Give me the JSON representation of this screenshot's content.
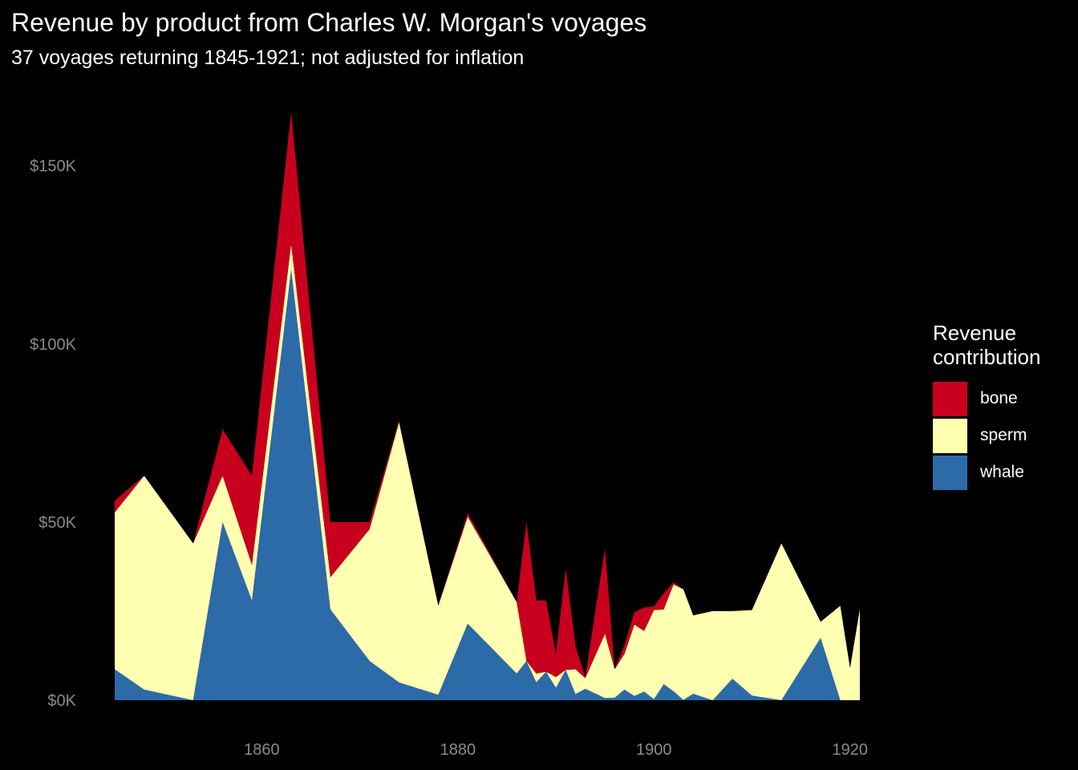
{
  "chart_data": {
    "type": "area",
    "stacked": true,
    "title": "Revenue by product from Charles W. Morgan's voyages",
    "subtitle": "37 voyages returning 1845-1921; not adjusted for inflation",
    "xlabel": "",
    "ylabel": "",
    "xlim": [
      1845,
      1921
    ],
    "ylim": [
      0,
      165000
    ],
    "x_ticks": [
      1860,
      1880,
      1900,
      1920
    ],
    "y_ticks": [
      0,
      50000,
      100000,
      150000
    ],
    "y_tick_labels": [
      "$0K",
      "$50K",
      "$100K",
      "$150K"
    ],
    "grid": false,
    "legend_position": "right",
    "legend_title": "Revenue contribution",
    "x": [
      1845,
      1848,
      1853,
      1856,
      1859,
      1863,
      1867,
      1871,
      1874,
      1878,
      1881,
      1886,
      1887,
      1888,
      1889,
      1890,
      1891,
      1892,
      1893,
      1895,
      1896,
      1897,
      1898,
      1899,
      1900,
      1901,
      1902,
      1903,
      1904,
      1906,
      1908,
      1910,
      1913,
      1917,
      1919,
      1920,
      1921
    ],
    "series": [
      {
        "name": "whale",
        "color": "#2C6AA8",
        "values": [
          8700,
          3000,
          0,
          50000,
          28000,
          121000,
          25500,
          11000,
          5000,
          1500,
          21500,
          7500,
          11000,
          5000,
          8000,
          3500,
          8500,
          1700,
          3200,
          600,
          700,
          3000,
          1200,
          2400,
          300,
          4500,
          2500,
          100,
          1800,
          0,
          6000,
          1300,
          0,
          17500,
          0,
          0,
          0
        ]
      },
      {
        "name": "sperm",
        "color": "#FFFFB2",
        "values": [
          44000,
          60000,
          44000,
          13000,
          10000,
          7000,
          9000,
          37000,
          73000,
          25000,
          30000,
          20000,
          0,
          2500,
          0,
          3000,
          0,
          7000,
          3000,
          18000,
          8000,
          10000,
          20000,
          17000,
          25000,
          21000,
          30000,
          31000,
          22000,
          25000,
          19000,
          24000,
          44000,
          4500,
          26500,
          9000,
          25500
        ]
      },
      {
        "name": "bone",
        "color": "#C8001E",
        "values": [
          3300,
          0,
          0,
          13000,
          25000,
          37000,
          15500,
          2000,
          500,
          0,
          1000,
          0,
          39000,
          20500,
          20000,
          6500,
          28500,
          6500,
          300,
          24000,
          0,
          2500,
          3500,
          6600,
          1000,
          4500,
          600,
          0,
          0,
          0,
          0,
          0,
          0,
          0,
          0,
          0,
          0
        ]
      }
    ]
  }
}
